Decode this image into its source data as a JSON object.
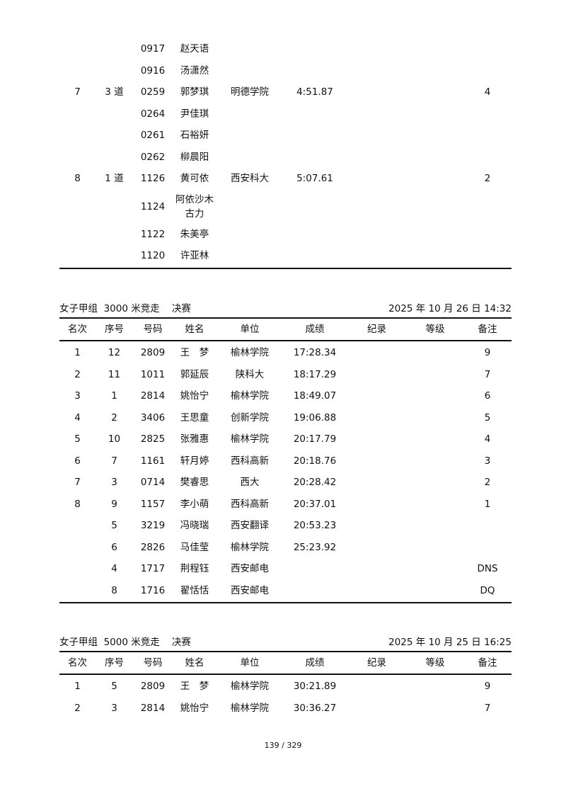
{
  "section1": {
    "rows": [
      [
        "",
        "",
        "0917",
        "赵天语",
        "",
        "",
        "",
        "",
        ""
      ],
      [
        "",
        "",
        "0916",
        "汤潇然",
        "",
        "",
        "",
        "",
        ""
      ],
      [
        "7",
        "3 道",
        "0259",
        "郭梦琪",
        "明德学院",
        "4:51.87",
        "",
        "",
        "4"
      ],
      [
        "",
        "",
        "0264",
        "尹佳琪",
        "",
        "",
        "",
        "",
        ""
      ],
      [
        "",
        "",
        "0261",
        "石裕妍",
        "",
        "",
        "",
        "",
        ""
      ],
      [
        "",
        "",
        "0262",
        "柳晨阳",
        "",
        "",
        "",
        "",
        ""
      ],
      [
        "8",
        "1 道",
        "1126",
        "黄可依",
        "西安科大",
        "5:07.61",
        "",
        "",
        "2"
      ],
      [
        "",
        "",
        "1124",
        "阿依沙木古力",
        "",
        "",
        "",
        "",
        ""
      ],
      [
        "",
        "",
        "1122",
        "朱美亭",
        "",
        "",
        "",
        "",
        ""
      ],
      [
        "",
        "",
        "1120",
        "许亚林",
        "",
        "",
        "",
        "",
        ""
      ]
    ]
  },
  "section2": {
    "title": "女子甲组  3000 米竞走    决赛",
    "datetime": "2025 年 10 月 26 日  14:32",
    "headers": [
      "名次",
      "序号",
      "号码",
      "姓名",
      "单位",
      "成绩",
      "纪录",
      "等级",
      "备注"
    ],
    "rows": [
      [
        "1",
        "12",
        "2809",
        "王　梦",
        "榆林学院",
        "17:28.34",
        "",
        "",
        "9"
      ],
      [
        "2",
        "11",
        "1011",
        "郭延辰",
        "陕科大",
        "18:17.29",
        "",
        "",
        "7"
      ],
      [
        "3",
        "1",
        "2814",
        "姚怡宁",
        "榆林学院",
        "18:49.07",
        "",
        "",
        "6"
      ],
      [
        "4",
        "2",
        "3406",
        "王思童",
        "创新学院",
        "19:06.88",
        "",
        "",
        "5"
      ],
      [
        "5",
        "10",
        "2825",
        "张雅惠",
        "榆林学院",
        "20:17.79",
        "",
        "",
        "4"
      ],
      [
        "6",
        "7",
        "1161",
        "轩月婷",
        "西科高新",
        "20:18.76",
        "",
        "",
        "3"
      ],
      [
        "7",
        "3",
        "0714",
        "樊睿思",
        "西大",
        "20:28.42",
        "",
        "",
        "2"
      ],
      [
        "8",
        "9",
        "1157",
        "李小萌",
        "西科高新",
        "20:37.01",
        "",
        "",
        "1"
      ],
      [
        "",
        "5",
        "3219",
        "冯晓瑞",
        "西安翻译",
        "20:53.23",
        "",
        "",
        ""
      ],
      [
        "",
        "6",
        "2826",
        "马佳莹",
        "榆林学院",
        "25:23.92",
        "",
        "",
        ""
      ],
      [
        "",
        "4",
        "1717",
        "荆程钰",
        "西安邮电",
        "",
        "",
        "",
        "DNS"
      ],
      [
        "",
        "8",
        "1716",
        "翟恬恬",
        "西安邮电",
        "",
        "",
        "",
        "DQ"
      ]
    ]
  },
  "section3": {
    "title": "女子甲组  5000 米竞走    决赛",
    "datetime": "2025 年 10 月 25 日  16:25",
    "headers": [
      "名次",
      "序号",
      "号码",
      "姓名",
      "单位",
      "成绩",
      "纪录",
      "等级",
      "备注"
    ],
    "rows": [
      [
        "1",
        "5",
        "2809",
        "王　梦",
        "榆林学院",
        "30:21.89",
        "",
        "",
        "9"
      ],
      [
        "2",
        "3",
        "2814",
        "姚怡宁",
        "榆林学院",
        "30:36.27",
        "",
        "",
        "7"
      ]
    ]
  },
  "footer": {
    "page": "139 / 329"
  }
}
